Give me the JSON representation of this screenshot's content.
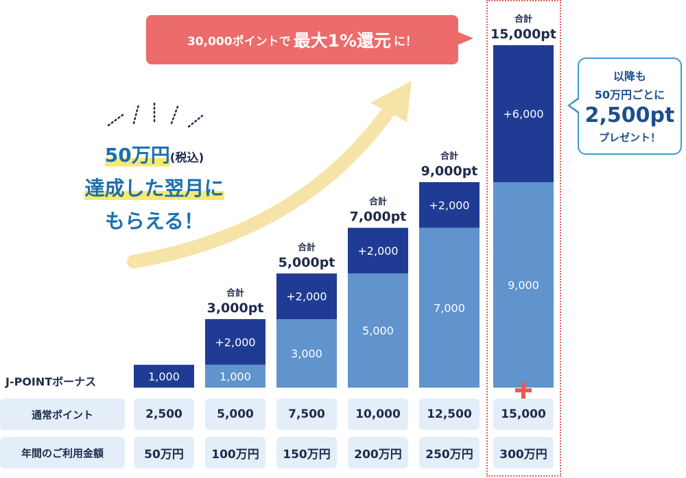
{
  "callout_top": {
    "prefix": "30,000ポイントで",
    "big": "最大1%還元",
    "suffix": "に！"
  },
  "callout_right": {
    "line1": "以降も",
    "line2": "50万円ごとに",
    "big": "2,500pt",
    "line4": "プレゼント！"
  },
  "headline": {
    "l1a": "50万円",
    "l1b": "(税込)",
    "l2": "達成した翌月に",
    "l3": "もらえる！"
  },
  "row_labels": {
    "bonus": "J-POINTボーナス",
    "normal": "通常ポイント",
    "spend": "年間のご利用金額"
  },
  "colors": {
    "dark": "#1f3b93",
    "light": "#6193cd",
    "cell_bg": "#e3eef9",
    "red": "#ec6b6b",
    "arrow": "#f6e3a8"
  },
  "plus_icon": "plus-icon",
  "chart_data": {
    "type": "bar",
    "stacked": true,
    "categories": [
      "50万円",
      "100万円",
      "150万円",
      "200万円",
      "250万円",
      "300万円"
    ],
    "series": [
      {
        "values": [
          0,
          1000,
          3000,
          5000,
          7000,
          9000
        ],
        "labels": [
          "",
          "1,000",
          "3,000",
          "5,000",
          "7,000",
          "9,000"
        ]
      },
      {
        "values": [
          1000,
          2000,
          2000,
          2000,
          2000,
          6000
        ],
        "labels": [
          "1,000",
          "+2,000",
          "+2,000",
          "+2,000",
          "+2,000",
          "+6,000"
        ]
      }
    ],
    "total_caption": "合計",
    "totals": [
      "",
      "3,000pt",
      "5,000pt",
      "7,000pt",
      "9,000pt",
      "15,000pt"
    ],
    "normal_points": [
      "2,500",
      "5,000",
      "7,500",
      "10,000",
      "12,500",
      "15,000"
    ],
    "ylim": [
      0,
      15000
    ]
  }
}
